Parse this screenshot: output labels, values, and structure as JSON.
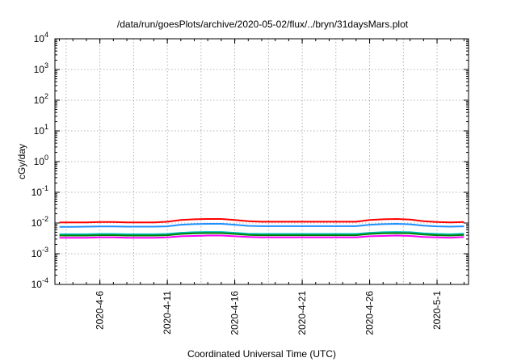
{
  "chart_data": {
    "type": "line",
    "title": "/data/run/goesPlots/archive/2020-05-02/flux/../bryn/31daysMars.plot",
    "xlabel": "Coordinated Universal Time (UTC)",
    "ylabel": "cGy/day",
    "yscale": "log",
    "ylim": [
      0.0001,
      10000
    ],
    "xlim": [
      "2020-04-02T16:00",
      "2020-05-03T08:00"
    ],
    "grid": true,
    "y_ticks": [
      {
        "base": "10",
        "exp": "-4",
        "value": 0.0001
      },
      {
        "base": "10",
        "exp": "-3",
        "value": 0.001
      },
      {
        "base": "10",
        "exp": "-2",
        "value": 0.01
      },
      {
        "base": "10",
        "exp": "-1",
        "value": 0.1
      },
      {
        "base": "10",
        "exp": "0",
        "value": 1
      },
      {
        "base": "10",
        "exp": "1",
        "value": 10
      },
      {
        "base": "10",
        "exp": "2",
        "value": 100
      },
      {
        "base": "10",
        "exp": "3",
        "value": 1000
      },
      {
        "base": "10",
        "exp": "4",
        "value": 10000
      }
    ],
    "x_ticks": [
      {
        "label": "2020-4-6",
        "date": "2020-04-06"
      },
      {
        "label": "2020-4-11",
        "date": "2020-04-11"
      },
      {
        "label": "2020-4-16",
        "date": "2020-04-16"
      },
      {
        "label": "2020-4-21",
        "date": "2020-04-21"
      },
      {
        "label": "2020-4-26",
        "date": "2020-04-26"
      },
      {
        "label": "2020-5-1",
        "date": "2020-05-01"
      }
    ],
    "series": [
      {
        "color": "#ff0000",
        "x": [
          "2020-04-03",
          "2020-04-04",
          "2020-04-05",
          "2020-04-06",
          "2020-04-07",
          "2020-04-08",
          "2020-04-09",
          "2020-04-10",
          "2020-04-11",
          "2020-04-12",
          "2020-04-13",
          "2020-04-14",
          "2020-04-15",
          "2020-04-16",
          "2020-04-17",
          "2020-04-18",
          "2020-04-19",
          "2020-04-20",
          "2020-04-21",
          "2020-04-22",
          "2020-04-23",
          "2020-04-24",
          "2020-04-25",
          "2020-04-26",
          "2020-04-27",
          "2020-04-28",
          "2020-04-29",
          "2020-04-30",
          "2020-05-01",
          "2020-05-02",
          "2020-05-03"
        ],
        "y": [
          0.0105,
          0.0105,
          0.0105,
          0.0108,
          0.0108,
          0.0105,
          0.0105,
          0.0105,
          0.011,
          0.0125,
          0.0132,
          0.0135,
          0.0135,
          0.0125,
          0.0115,
          0.011,
          0.011,
          0.011,
          0.011,
          0.011,
          0.011,
          0.011,
          0.011,
          0.0125,
          0.0132,
          0.0135,
          0.013,
          0.0115,
          0.0108,
          0.0105,
          0.0108
        ]
      },
      {
        "color": "#1e90ff",
        "x": [
          "2020-04-03",
          "2020-04-04",
          "2020-04-05",
          "2020-04-06",
          "2020-04-07",
          "2020-04-08",
          "2020-04-09",
          "2020-04-10",
          "2020-04-11",
          "2020-04-12",
          "2020-04-13",
          "2020-04-14",
          "2020-04-15",
          "2020-04-16",
          "2020-04-17",
          "2020-04-18",
          "2020-04-19",
          "2020-04-20",
          "2020-04-21",
          "2020-04-22",
          "2020-04-23",
          "2020-04-24",
          "2020-04-25",
          "2020-04-26",
          "2020-04-27",
          "2020-04-28",
          "2020-04-29",
          "2020-04-30",
          "2020-05-01",
          "2020-05-02",
          "2020-05-03"
        ],
        "y": [
          0.0075,
          0.0075,
          0.0076,
          0.0077,
          0.0077,
          0.0076,
          0.0076,
          0.0076,
          0.0078,
          0.0088,
          0.0092,
          0.0094,
          0.0094,
          0.0088,
          0.0081,
          0.0079,
          0.0079,
          0.0079,
          0.0079,
          0.0079,
          0.0079,
          0.0079,
          0.0079,
          0.0088,
          0.0092,
          0.0094,
          0.0091,
          0.0082,
          0.0078,
          0.0076,
          0.0078
        ]
      },
      {
        "color": "#00c0c0",
        "x": [
          "2020-04-03",
          "2020-04-04",
          "2020-04-05",
          "2020-04-06",
          "2020-04-07",
          "2020-04-08",
          "2020-04-09",
          "2020-04-10",
          "2020-04-11",
          "2020-04-12",
          "2020-04-13",
          "2020-04-14",
          "2020-04-15",
          "2020-04-16",
          "2020-04-17",
          "2020-04-18",
          "2020-04-19",
          "2020-04-20",
          "2020-04-21",
          "2020-04-22",
          "2020-04-23",
          "2020-04-24",
          "2020-04-25",
          "2020-04-26",
          "2020-04-27",
          "2020-04-28",
          "2020-04-29",
          "2020-04-30",
          "2020-05-01",
          "2020-05-02",
          "2020-05-03"
        ],
        "y": [
          0.0043,
          0.0043,
          0.0043,
          0.0044,
          0.0044,
          0.0043,
          0.0043,
          0.0043,
          0.0044,
          0.0048,
          0.005,
          0.0051,
          0.0051,
          0.0048,
          0.0045,
          0.0044,
          0.0044,
          0.0044,
          0.0044,
          0.0044,
          0.0044,
          0.0044,
          0.0044,
          0.0048,
          0.005,
          0.0051,
          0.005,
          0.0046,
          0.0044,
          0.0043,
          0.0045
        ]
      },
      {
        "color": "#008000",
        "x": [
          "2020-04-03",
          "2020-04-04",
          "2020-04-05",
          "2020-04-06",
          "2020-04-07",
          "2020-04-08",
          "2020-04-09",
          "2020-04-10",
          "2020-04-11",
          "2020-04-12",
          "2020-04-13",
          "2020-04-14",
          "2020-04-15",
          "2020-04-16",
          "2020-04-17",
          "2020-04-18",
          "2020-04-19",
          "2020-04-20",
          "2020-04-21",
          "2020-04-22",
          "2020-04-23",
          "2020-04-24",
          "2020-04-25",
          "2020-04-26",
          "2020-04-27",
          "2020-04-28",
          "2020-04-29",
          "2020-04-30",
          "2020-05-01",
          "2020-05-02",
          "2020-05-03"
        ],
        "y": [
          0.0039,
          0.0039,
          0.0039,
          0.004,
          0.004,
          0.0039,
          0.0039,
          0.0039,
          0.004,
          0.0044,
          0.0046,
          0.0047,
          0.0047,
          0.0044,
          0.0041,
          0.004,
          0.004,
          0.004,
          0.004,
          0.004,
          0.004,
          0.004,
          0.004,
          0.0044,
          0.0046,
          0.0047,
          0.0046,
          0.0042,
          0.004,
          0.0039,
          0.0041
        ]
      },
      {
        "color": "#ff00ff",
        "x": [
          "2020-04-03",
          "2020-04-04",
          "2020-04-05",
          "2020-04-06",
          "2020-04-07",
          "2020-04-08",
          "2020-04-09",
          "2020-04-10",
          "2020-04-11",
          "2020-04-12",
          "2020-04-13",
          "2020-04-14",
          "2020-04-15",
          "2020-04-16",
          "2020-04-17",
          "2020-04-18",
          "2020-04-19",
          "2020-04-20",
          "2020-04-21",
          "2020-04-22",
          "2020-04-23",
          "2020-04-24",
          "2020-04-25",
          "2020-04-26",
          "2020-04-27",
          "2020-04-28",
          "2020-04-29",
          "2020-04-30",
          "2020-05-01",
          "2020-05-02",
          "2020-05-03"
        ],
        "y": [
          0.0033,
          0.0033,
          0.0033,
          0.0034,
          0.0034,
          0.0033,
          0.0033,
          0.0033,
          0.0034,
          0.0037,
          0.0038,
          0.0039,
          0.0039,
          0.0037,
          0.0035,
          0.0034,
          0.0034,
          0.0034,
          0.0034,
          0.0034,
          0.0034,
          0.0034,
          0.0034,
          0.0037,
          0.0038,
          0.0039,
          0.0038,
          0.0035,
          0.0034,
          0.0033,
          0.0035
        ]
      }
    ]
  }
}
